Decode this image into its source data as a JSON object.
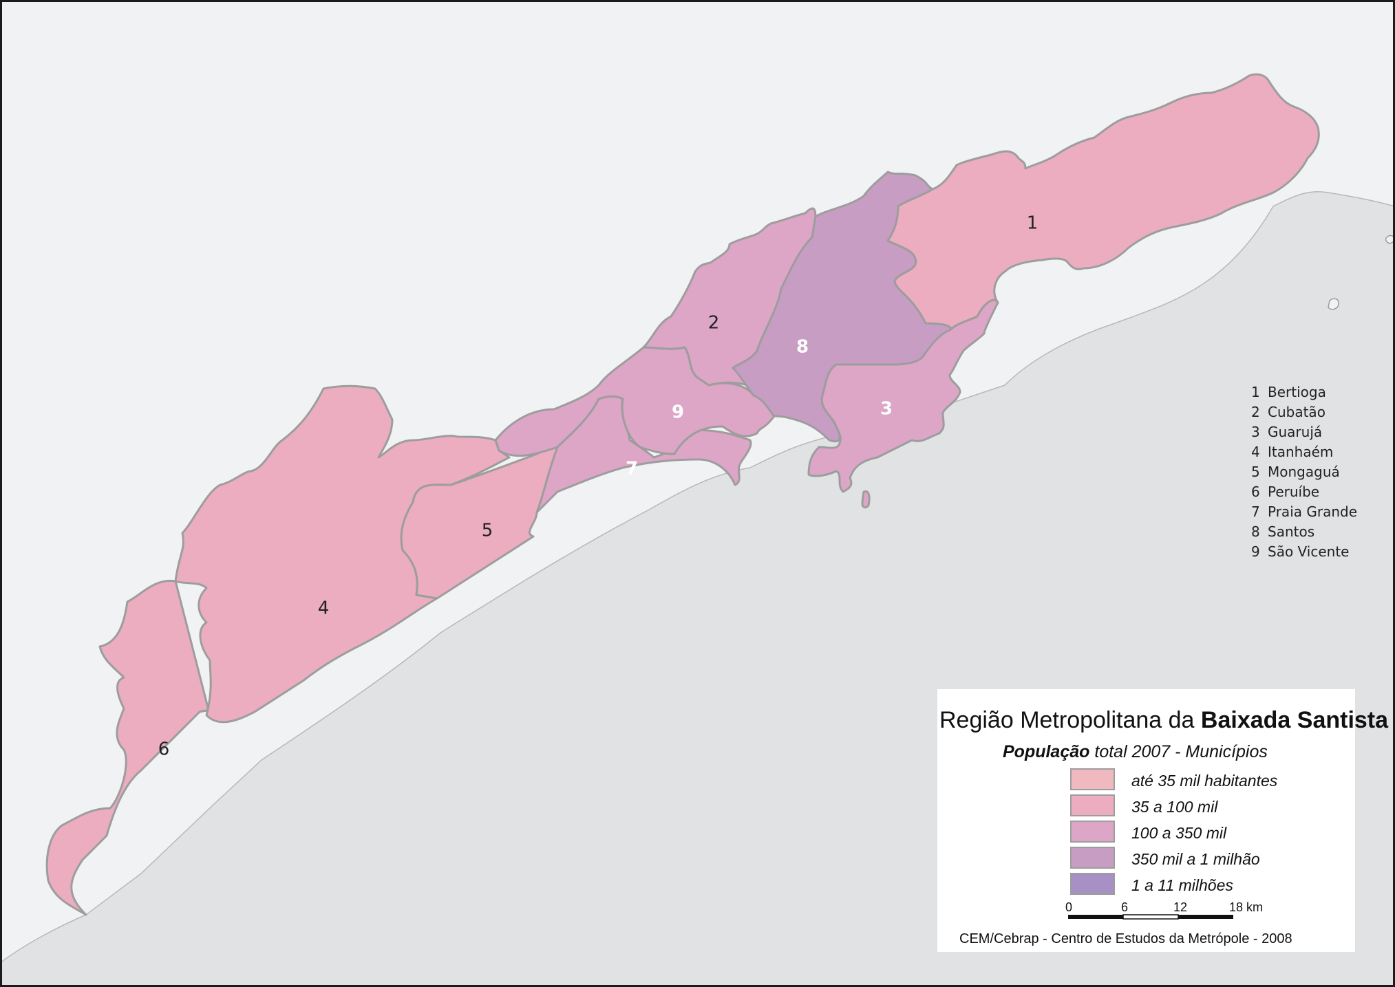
{
  "map": {
    "title_normal": "Região Metropolitana da ",
    "title_bold": "Baixada Santista",
    "subtitle_bold": "População",
    "subtitle_rest": " total 2007 - Municípios",
    "credit": "CEM/Cebrap - Centro de Estudos da Metrópole - 2008",
    "colors": {
      "land": "#f1f2f4",
      "sea": "#e1e2e4",
      "border": "#9d9d9d",
      "class_1": "#f0b9c0",
      "class_2": "#ebadbf",
      "class_3": "#dda5c6",
      "class_4": "#c89dc3",
      "class_5": "#a791c4"
    },
    "classes": [
      {
        "label": "até 35 mil habitantes",
        "color": "#f0b9c0"
      },
      {
        "label": "35 a 100 mil",
        "color": "#ebadbf"
      },
      {
        "label": "100 a 350 mil",
        "color": "#dda5c6"
      },
      {
        "label": "350 mil a 1 milhão",
        "color": "#c89dc3"
      },
      {
        "label": "1 a 11 milhões",
        "color": "#a791c4"
      }
    ],
    "scale": {
      "ticks": [
        "0",
        "6",
        "12",
        "18 km"
      ]
    },
    "index": [
      {
        "num": "1",
        "name": "Bertioga"
      },
      {
        "num": "2",
        "name": "Cubatão"
      },
      {
        "num": "3",
        "name": "Guarujá"
      },
      {
        "num": "4",
        "name": "Itanhaém"
      },
      {
        "num": "5",
        "name": "Mongaguá"
      },
      {
        "num": "6",
        "name": "Peruíbe"
      },
      {
        "num": "7",
        "name": "Praia Grande"
      },
      {
        "num": "8",
        "name": "Santos"
      },
      {
        "num": "9",
        "name": "São Vicente"
      }
    ],
    "municipalities": [
      {
        "num": "1",
        "name": "Bertioga",
        "class": 2
      },
      {
        "num": "2",
        "name": "Cubatão",
        "class": 3
      },
      {
        "num": "3",
        "name": "Guarujá",
        "class": 3
      },
      {
        "num": "4",
        "name": "Itanhaém",
        "class": 2
      },
      {
        "num": "5",
        "name": "Mongaguá",
        "class": 2
      },
      {
        "num": "6",
        "name": "Peruíbe",
        "class": 2
      },
      {
        "num": "7",
        "name": "Praia Grande",
        "class": 3
      },
      {
        "num": "8",
        "name": "Santos",
        "class": 4
      },
      {
        "num": "9",
        "name": "São Vicente",
        "class": 3
      }
    ]
  }
}
